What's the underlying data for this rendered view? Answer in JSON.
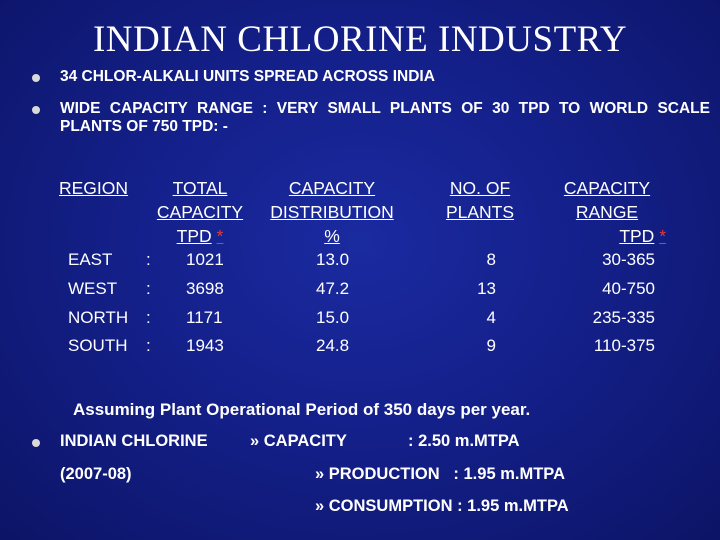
{
  "title": "INDIAN CHLORINE INDUSTRY",
  "bullets": [
    "34 CHLOR-ALKALI UNITS SPREAD ACROSS INDIA",
    "WIDE CAPACITY RANGE : VERY SMALL PLANTS OF 30 TPD TO WORLD SCALE PLANTS OF 750 TPD: -"
  ],
  "table": {
    "headers": {
      "region": "REGION",
      "total_l1": "TOTAL",
      "total_l2": "CAPACITY",
      "total_l3": "TPD",
      "dist_l1": "CAPACITY",
      "dist_l2": "DISTRIBUTION",
      "dist_l3": "%",
      "plants_l1": "NO. OF",
      "plants_l2": "PLANTS",
      "range_l1": "CAPACITY",
      "range_l2": "RANGE",
      "range_l3": "TPD",
      "star": "*"
    },
    "rows": [
      {
        "region": "EAST",
        "sep": ":",
        "total": "1021",
        "dist": "13.0",
        "plants": "8",
        "range": "30-365"
      },
      {
        "region": "WEST",
        "sep": ":",
        "total": "3698",
        "dist": "47.2",
        "plants": "13",
        "range": "40-750"
      },
      {
        "region": "NORTH",
        "sep": ":",
        "total": "1171",
        "dist": "15.0",
        "plants": "4",
        "range": "235-335"
      },
      {
        "region": "SOUTH",
        "sep": ":",
        "total": "1943",
        "dist": "24.8",
        "plants": "9",
        "range": "110-375"
      }
    ]
  },
  "note": "Assuming Plant Operational Period of 350 days per year.",
  "capacity": {
    "label": "INDIAN CHLORINE",
    "arrow1": "» CAPACITY",
    "value1": ": 2.50 m.MTPA",
    "year": "(2007-08)",
    "line2": "» PRODUCTION   : 1.95 m.MTPA",
    "line3": "» CONSUMPTION : 1.95 m.MTPA"
  },
  "colors": {
    "background": "#14208a",
    "text": "#ffffff",
    "asterisk": "#e23a3a",
    "bullet": "#d9d9d9"
  }
}
